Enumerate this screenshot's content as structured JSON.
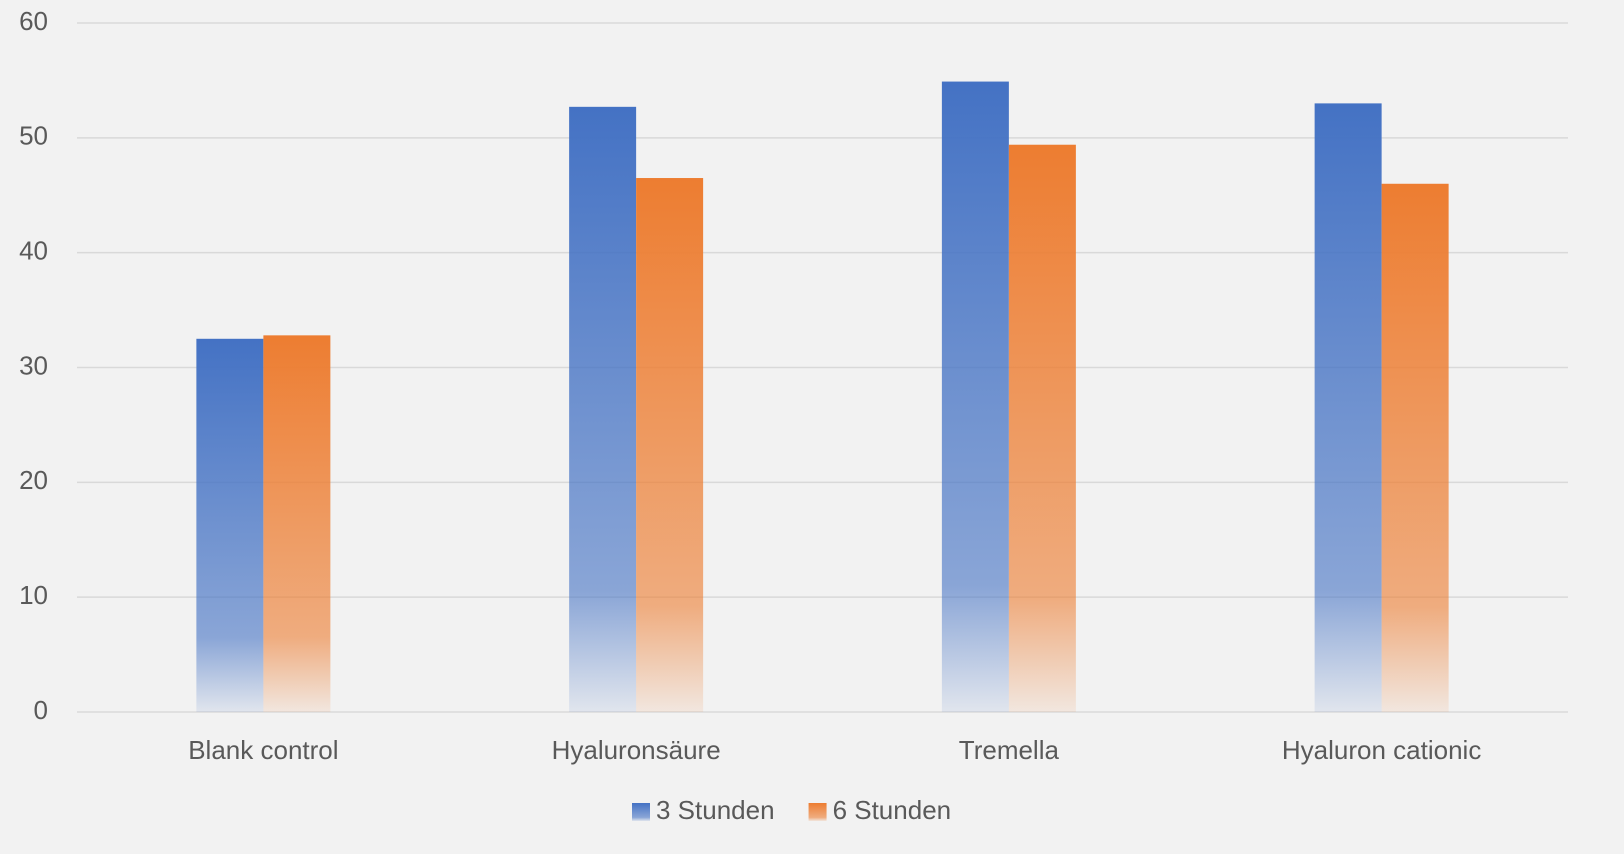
{
  "chart_data": {
    "type": "bar",
    "categories": [
      "Blank control",
      "Hyaluronsäure",
      "Tremella",
      "Hyaluron cationic"
    ],
    "series": [
      {
        "name": "3 Stunden",
        "color": "#4472c4",
        "values": [
          32.5,
          52.7,
          54.9,
          53.0
        ]
      },
      {
        "name": "6 Stunden",
        "color": "#ed7d31",
        "values": [
          32.8,
          46.5,
          49.4,
          46.0
        ]
      }
    ],
    "ylim": [
      0,
      60
    ],
    "yticks": [
      0,
      10,
      20,
      30,
      40,
      50,
      60
    ],
    "grid": true,
    "legend": "bottom"
  }
}
